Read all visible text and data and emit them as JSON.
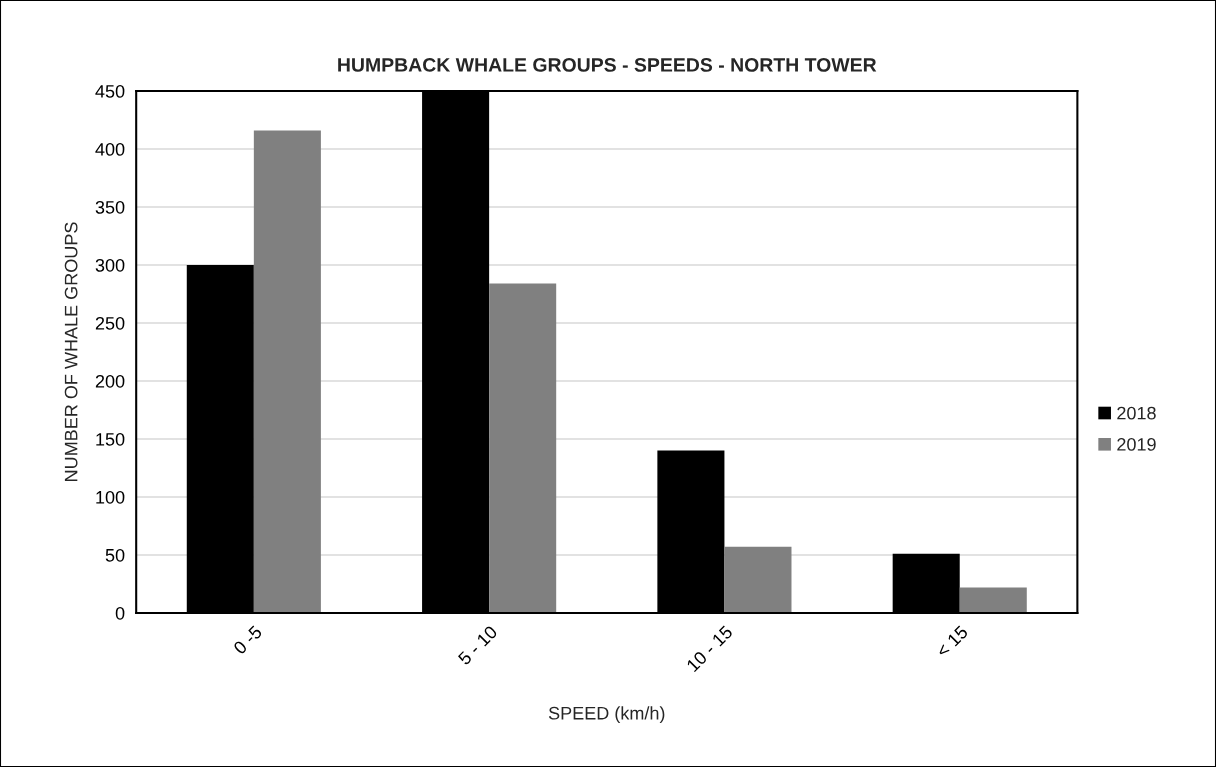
{
  "chart_data": {
    "type": "bar",
    "title": "HUMPBACK WHALE GROUPS - SPEEDS - NORTH TOWER",
    "xlabel": "SPEED (km/h)",
    "ylabel": "NUMBER OF WHALE GROUPS",
    "categories": [
      "0 -5",
      "5 - 10",
      "10 - 15",
      "< 15"
    ],
    "series": [
      {
        "name": "2018",
        "color": "#000000",
        "values": [
          300,
          450,
          140,
          51
        ]
      },
      {
        "name": "2019",
        "color": "#808080",
        "values": [
          416,
          284,
          57,
          22
        ]
      }
    ],
    "ylim": [
      0,
      450
    ],
    "yticks": [
      0,
      50,
      100,
      150,
      200,
      250,
      300,
      350,
      400,
      450
    ],
    "grid": "y",
    "legend": "right"
  }
}
